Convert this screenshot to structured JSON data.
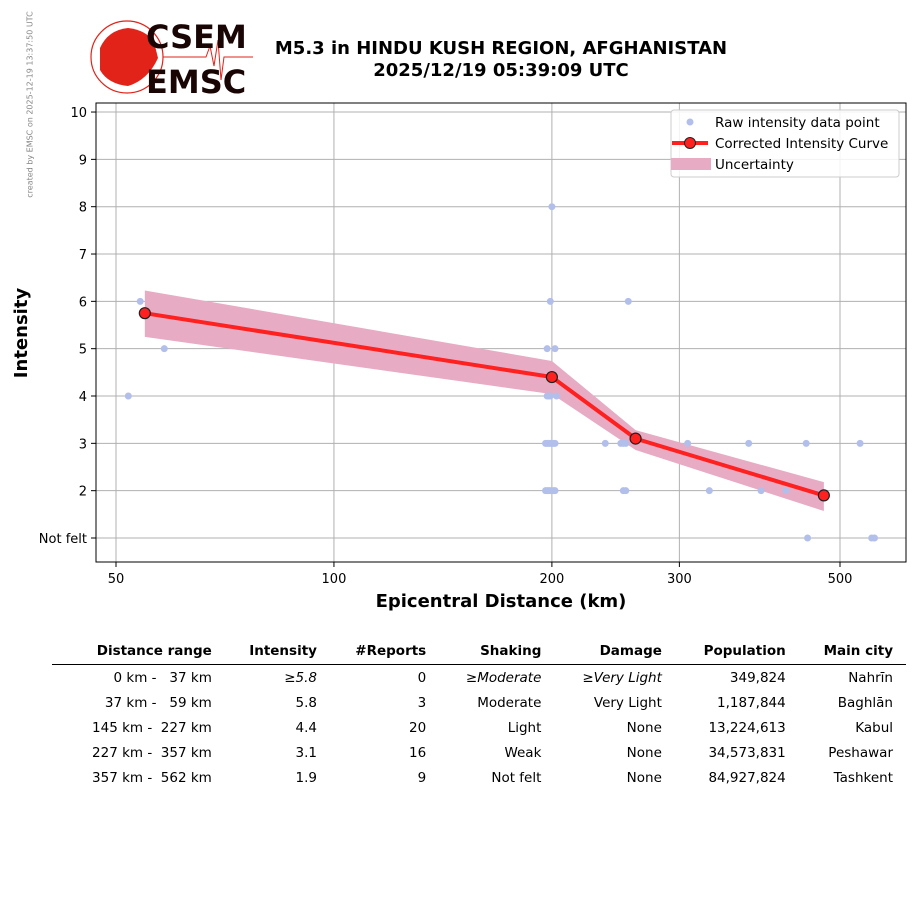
{
  "credit": "created by EMSC on 2025-12-19 13:37:50 UTC",
  "logo": {
    "top": "CSEM",
    "bottom": "EMSC"
  },
  "header": {
    "title": "M5.3 in HINDU KUSH REGION, AFGHANISTAN",
    "datetime": "2025/12/19 05:39:09 UTC"
  },
  "colors": {
    "raw": "#b3bfeb",
    "curve": "#ff2020",
    "uncertainty": "#e8abc4",
    "grid": "#b0b0b0"
  },
  "chart_data": {
    "type": "scatter",
    "xlabel": "Epicentral Distance (km)",
    "ylabel": "Intensity",
    "xscale": "log",
    "xlim": [
      47,
      620
    ],
    "ylim": [
      0.5,
      10.2
    ],
    "grid": true,
    "legend_position": "top-right",
    "xticks": [
      {
        "value": 50,
        "label": "50"
      },
      {
        "value": 100,
        "label": "100"
      },
      {
        "value": 200,
        "label": "200"
      },
      {
        "value": 300,
        "label": "300"
      },
      {
        "value": 500,
        "label": "500"
      }
    ],
    "yticks": [
      {
        "value": 1,
        "label": "Not felt"
      },
      {
        "value": 2,
        "label": "2"
      },
      {
        "value": 3,
        "label": "3"
      },
      {
        "value": 4,
        "label": "4"
      },
      {
        "value": 5,
        "label": "5"
      },
      {
        "value": 6,
        "label": "6"
      },
      {
        "value": 7,
        "label": "7"
      },
      {
        "value": 8,
        "label": "8"
      },
      {
        "value": 9,
        "label": "9"
      },
      {
        "value": 10,
        "label": "10"
      }
    ],
    "legend": [
      "Raw intensity data point",
      "Corrected Intensity Curve",
      "Uncertainty"
    ],
    "raw_points": [
      [
        54,
        6
      ],
      [
        199,
        6
      ],
      [
        255,
        6
      ],
      [
        58.3,
        5
      ],
      [
        197,
        5
      ],
      [
        202,
        5
      ],
      [
        52,
        4
      ],
      [
        197,
        4
      ],
      [
        198,
        4
      ],
      [
        199,
        4
      ],
      [
        203,
        4
      ],
      [
        200,
        8
      ],
      [
        196,
        3
      ],
      [
        197,
        3
      ],
      [
        198,
        3
      ],
      [
        199,
        3
      ],
      [
        200,
        3
      ],
      [
        201,
        3
      ],
      [
        202,
        3
      ],
      [
        237,
        3
      ],
      [
        249,
        3
      ],
      [
        251,
        3
      ],
      [
        253,
        3
      ],
      [
        308,
        3
      ],
      [
        374,
        3
      ],
      [
        449,
        3
      ],
      [
        533,
        3
      ],
      [
        196,
        2
      ],
      [
        197,
        2
      ],
      [
        198,
        2
      ],
      [
        199,
        2
      ],
      [
        201,
        2
      ],
      [
        202,
        2
      ],
      [
        251,
        2
      ],
      [
        253,
        2
      ],
      [
        330,
        2
      ],
      [
        389,
        2
      ],
      [
        421,
        2
      ],
      [
        451,
        1
      ],
      [
        553,
        1
      ],
      [
        558,
        1
      ]
    ],
    "curve": {
      "x": [
        54.8,
        200,
        261,
        475
      ],
      "y": [
        5.75,
        4.4,
        3.1,
        1.9
      ]
    },
    "uncertainty": {
      "x": [
        54.8,
        200,
        261,
        475
      ],
      "upper": [
        6.23,
        4.74,
        3.28,
        2.18
      ],
      "lower": [
        5.25,
        4.04,
        2.86,
        1.57
      ]
    }
  },
  "table": {
    "headers": [
      "Distance range",
      "Intensity",
      "#Reports",
      "Shaking",
      "Damage",
      "Population",
      "Main city"
    ],
    "rows": [
      [
        "0 km -   37 km",
        "≥5.8",
        "0",
        "≥Moderate",
        "≥Very Light",
        "349,824",
        "Nahrīn"
      ],
      [
        "37 km -   59 km",
        "5.8",
        "3",
        "Moderate",
        "Very Light",
        "1,187,844",
        "Baghlān"
      ],
      [
        "145 km -  227 km",
        "4.4",
        "20",
        "Light",
        "None",
        "13,224,613",
        "Kabul"
      ],
      [
        "227 km -  357 km",
        "3.1",
        "16",
        "Weak",
        "None",
        "34,573,831",
        "Peshawar"
      ],
      [
        "357 km -  562 km",
        "1.9",
        "9",
        "Not felt",
        "None",
        "84,927,824",
        "Tashkent"
      ]
    ]
  }
}
